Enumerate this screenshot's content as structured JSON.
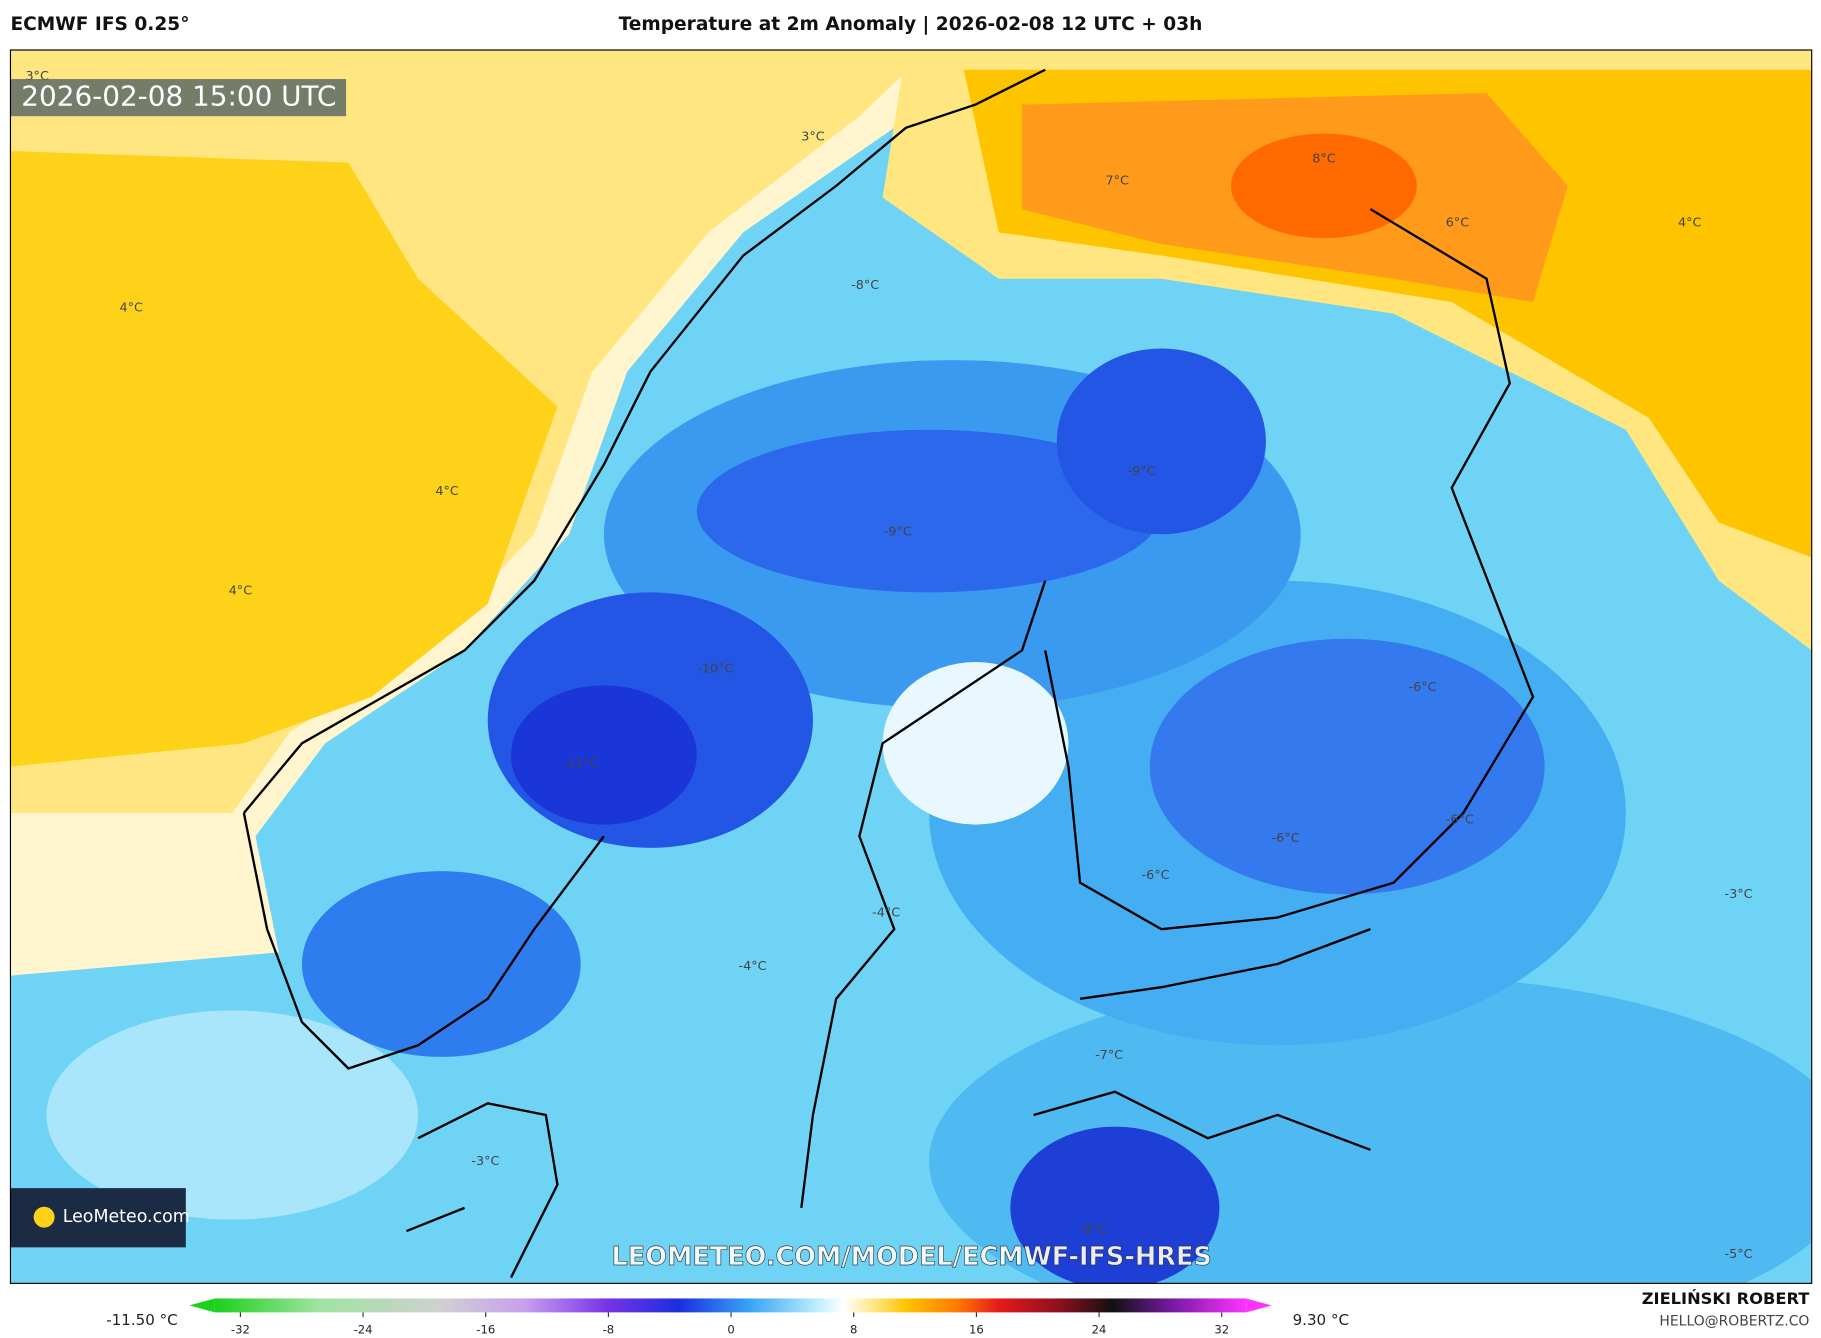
{
  "header": {
    "model": "ECMWF IFS 0.25°",
    "title": "Temperature at 2m Anomaly | 2026-02-08 12 UTC + 03h"
  },
  "map": {
    "timestamp": "2026-02-08 15:00 UTC",
    "contour_labels": [
      "3°C",
      "3°C",
      "4°C",
      "4°C",
      "4°C",
      "7°C",
      "8°C",
      "6°C",
      "4°C",
      "-8°C",
      "-9°C",
      "-9°C",
      "-10°C",
      "-11°C",
      "-6°C",
      "-6°C",
      "-6°C",
      "-6°C",
      "-4°C",
      "-4°C",
      "-3°C",
      "-7°C",
      "-3°C",
      "-9°C",
      "-5°C"
    ],
    "watermark": "LEOMETEO.COM/MODEL/ECMWF-IFS-HRES",
    "logo": "LeoMeteo.com"
  },
  "colorbar": {
    "min_label": "-11.50 °C",
    "max_label": "9.30 °C",
    "ticks": [
      -32,
      -24,
      -16,
      -8,
      0,
      8,
      16,
      24,
      32
    ]
  },
  "credit": {
    "author": "ZIELIŃSKI ROBERT",
    "email": "HELLO@ROBERTZ.CO"
  }
}
